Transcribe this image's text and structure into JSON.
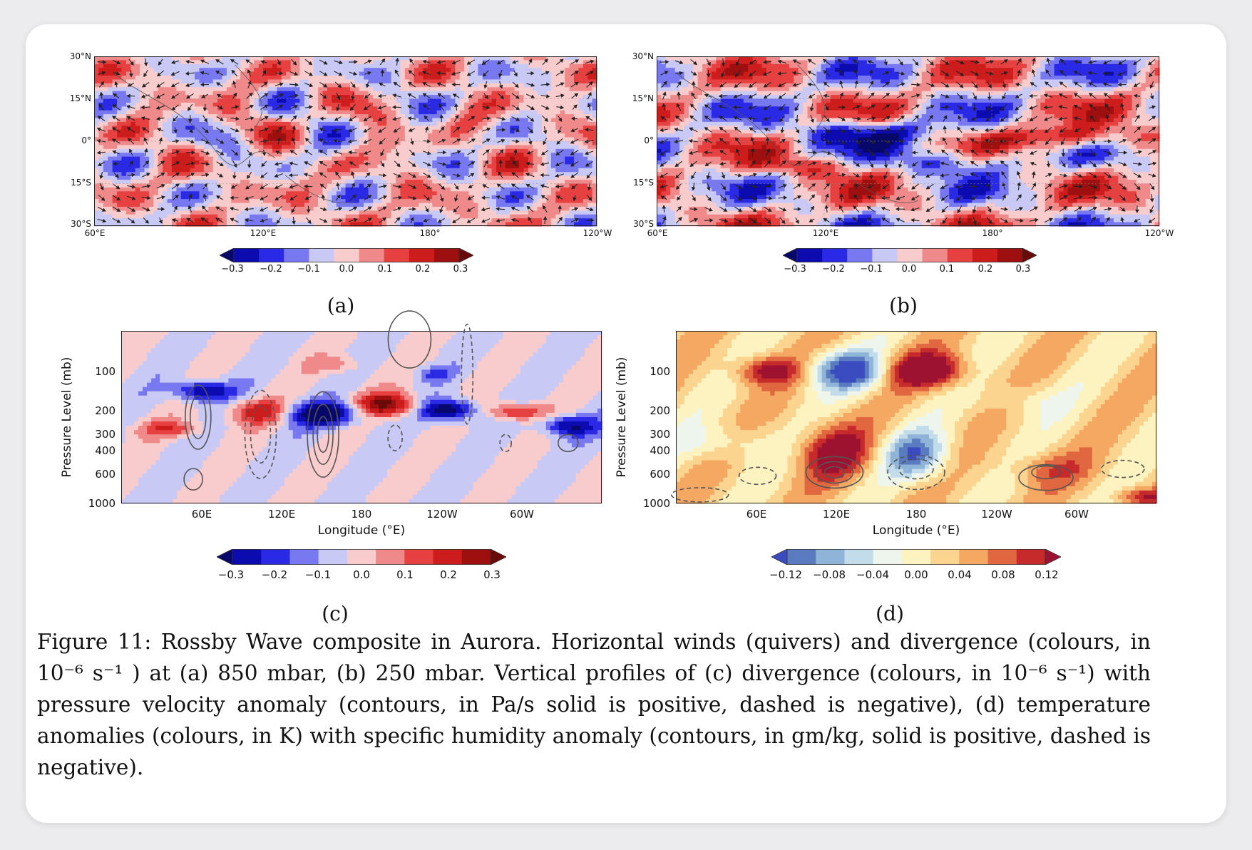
{
  "figure": {
    "caption": "Figure 11: Rossby Wave composite in Aurora. Horizontal winds (quivers) and divergence (colours, in 10⁻⁶ s⁻¹ ) at (a) 850 mbar, (b) 250 mbar. Vertical profiles of (c) divergence (colours, in 10⁻⁶ s⁻¹) with pressure velocity anomaly (contours, in Pa/s solid is positive, dashed is negative), (d) temperature anomalies (colours, in K) with specific humidity anomaly (contours, in gm/kg, solid is positive, dashed is negative)."
  },
  "panels": {
    "a": {
      "label": "(a)",
      "lat_ticks": [
        "30°N",
        "15°N",
        "0°",
        "15°S",
        "30°S"
      ],
      "lon_ticks": [
        "60°E",
        "120°E",
        "180°",
        "120°W"
      ],
      "colorbar_ticks": [
        "−0.3",
        "−0.2",
        "−0.1",
        "0.0",
        "0.1",
        "0.2",
        "0.3"
      ]
    },
    "b": {
      "label": "(b)",
      "lat_ticks": [
        "30°N",
        "15°N",
        "0°",
        "15°S",
        "30°S"
      ],
      "lon_ticks": [
        "60°E",
        "120°E",
        "180°",
        "120°W"
      ],
      "colorbar_ticks": [
        "−0.3",
        "−0.2",
        "−0.1",
        "0.0",
        "0.1",
        "0.2",
        "0.3"
      ]
    },
    "c": {
      "label": "(c)",
      "ylabel": "Pressure Level (mb)",
      "xlabel": "Longitude (°E)",
      "y_ticks": [
        "100",
        "200",
        "300",
        "400",
        "600",
        "1000"
      ],
      "x_ticks": [
        "60E",
        "120E",
        "180",
        "120W",
        "60W"
      ],
      "colorbar_ticks": [
        "−0.3",
        "−0.2",
        "−0.1",
        "0.0",
        "0.1",
        "0.2",
        "0.3"
      ]
    },
    "d": {
      "label": "(d)",
      "ylabel": "Pressure Level (mb)",
      "xlabel": "Longitude (°E)",
      "y_ticks": [
        "100",
        "200",
        "300",
        "400",
        "600",
        "1000"
      ],
      "x_ticks": [
        "60E",
        "120E",
        "180",
        "120W",
        "60W"
      ],
      "colorbar_ticks": [
        "−0.12",
        "−0.08",
        "−0.04",
        "0.00",
        "0.04",
        "0.08",
        "0.12"
      ]
    }
  },
  "colors": {
    "div_cmap": [
      "#08086b",
      "#0b0bb0",
      "#2a2ae6",
      "#7878f0",
      "#c9c9f5",
      "#f8cccc",
      "#f08a8a",
      "#e64040",
      "#cc1c1c",
      "#9e0f0f",
      "#6b0a0a"
    ],
    "temp_cmap": [
      "#3b4cc0",
      "#5b7bc0",
      "#8fb4d8",
      "#c2dcea",
      "#eef5ec",
      "#fdf3c0",
      "#fbd48f",
      "#f4a862",
      "#e0673f",
      "#c62a2a",
      "#9e1231"
    ]
  }
}
